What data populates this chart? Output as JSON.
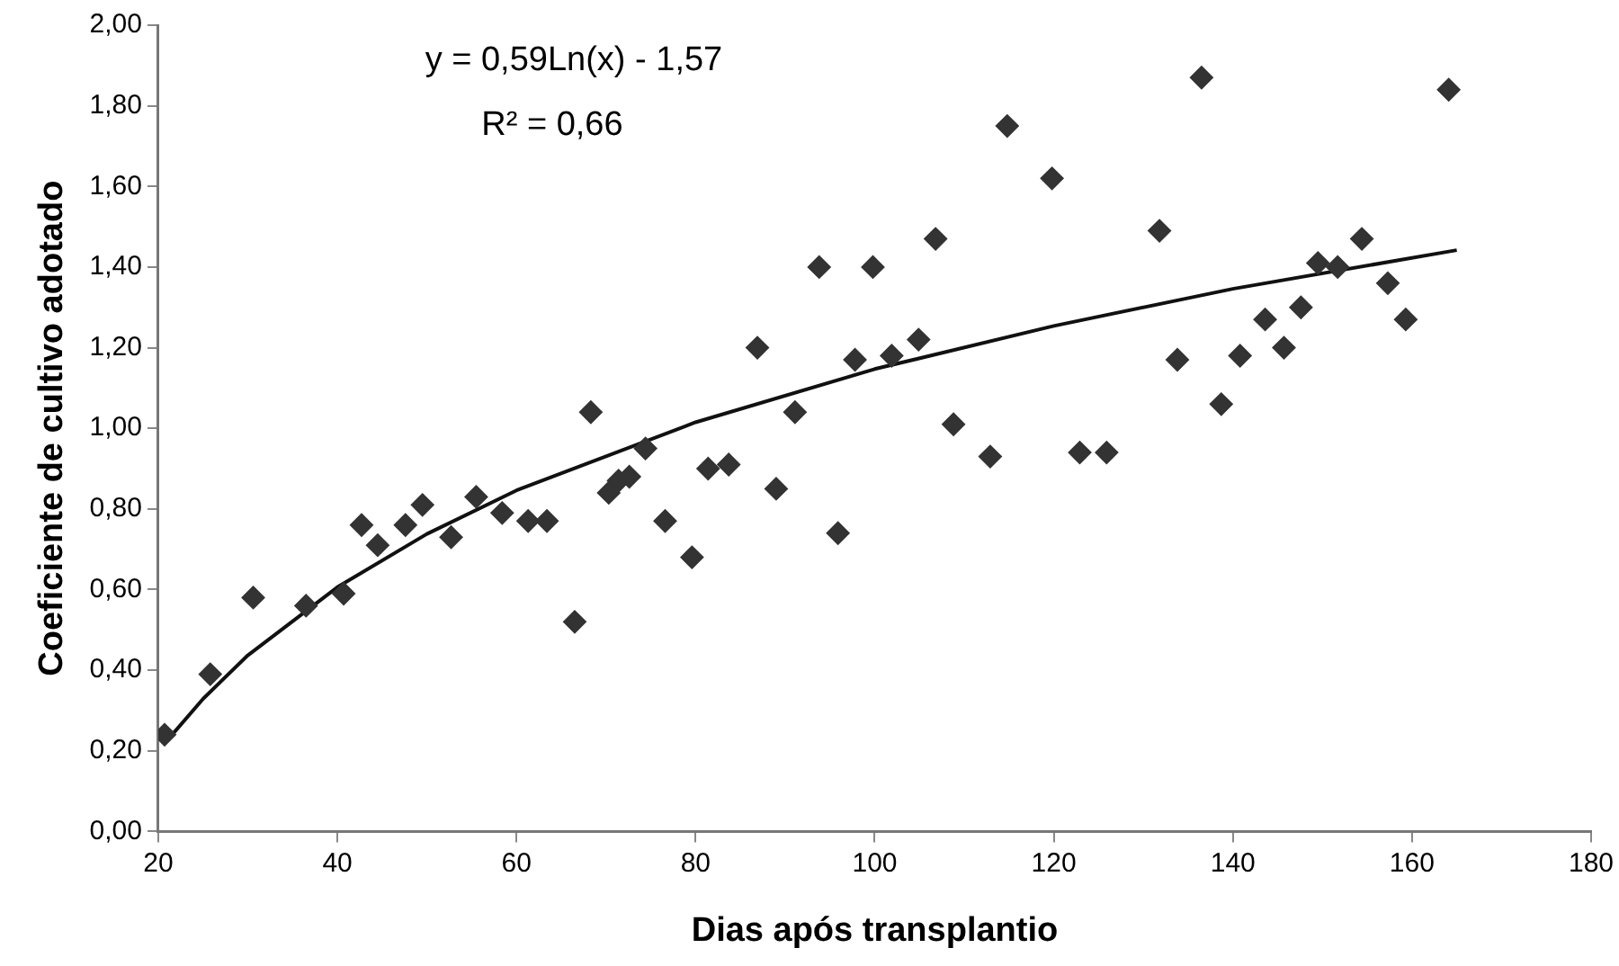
{
  "chart_data": {
    "type": "scatter",
    "xlabel": "Dias após transplantio",
    "ylabel": "Coeficiente de cultivo adotado",
    "annotations": [
      "y = 0,59Ln(x) - 1,57",
      "R² = 0,66"
    ],
    "xlim": [
      20,
      180
    ],
    "xticks": [
      20,
      40,
      60,
      80,
      100,
      120,
      140,
      160,
      180
    ],
    "ylim": [
      0,
      2
    ],
    "yticks": [
      {
        "value": 0,
        "label": "0,00"
      },
      {
        "value": 0.2,
        "label": "0,20"
      },
      {
        "value": 0.4,
        "label": "0,40"
      },
      {
        "value": 0.6,
        "label": "0,60"
      },
      {
        "value": 0.8,
        "label": "0,80"
      },
      {
        "value": 1,
        "label": "1,00"
      },
      {
        "value": 1.2,
        "label": "1,20"
      },
      {
        "value": 1.4,
        "label": "1,40"
      },
      {
        "value": 1.6,
        "label": "1,60"
      },
      {
        "value": 1.8,
        "label": "1,80"
      },
      {
        "value": 2,
        "label": "2,00"
      }
    ],
    "grid": false,
    "legend": false,
    "series": [
      {
        "type": "scatter",
        "color": "#333333",
        "marker": "diamond",
        "x": [
          20.7,
          25.8,
          30.6,
          36.5,
          40.7,
          42.7,
          44.5,
          47.6,
          49.5,
          52.7,
          55.5,
          58.4,
          61.3,
          63.4,
          66.5,
          68.3,
          70.3,
          71.4,
          72.6,
          74.4,
          76.6,
          79.6,
          81.4,
          83.7,
          86.9,
          89.0,
          91.1,
          93.8,
          95.9,
          97.8,
          99.8,
          101.9,
          104.9,
          106.8,
          108.8,
          112.9,
          114.8,
          119.8,
          122.9,
          125.9,
          131.8,
          133.8,
          136.5,
          138.7,
          140.8,
          143.6,
          145.7,
          147.6,
          149.5,
          151.7,
          154.4,
          157.3,
          159.3,
          164.1
        ],
        "values": [
          0.24,
          0.39,
          0.58,
          0.56,
          0.59,
          0.76,
          0.71,
          0.76,
          0.81,
          0.73,
          0.83,
          0.79,
          0.77,
          0.77,
          0.52,
          1.04,
          0.84,
          0.87,
          0.88,
          0.95,
          0.77,
          0.68,
          0.9,
          0.91,
          1.2,
          0.85,
          1.04,
          1.4,
          0.74,
          1.17,
          1.4,
          1.18,
          1.22,
          1.47,
          1.01,
          0.93,
          1.75,
          1.62,
          0.94,
          0.94,
          1.49,
          1.17,
          1.87,
          1.06,
          1.18,
          1.27,
          1.2,
          1.3,
          1.41,
          1.4,
          1.47,
          1.36,
          1.27,
          1.84
        ]
      },
      {
        "type": "line",
        "color": "#111111",
        "marker": "none",
        "line_style": "solid",
        "x": [
          21,
          25,
          30,
          40,
          50,
          60,
          80,
          100,
          120,
          140,
          165
        ],
        "values": [
          0.226,
          0.329,
          0.437,
          0.606,
          0.738,
          0.846,
          1.015,
          1.147,
          1.254,
          1.346,
          1.442
        ]
      }
    ]
  }
}
